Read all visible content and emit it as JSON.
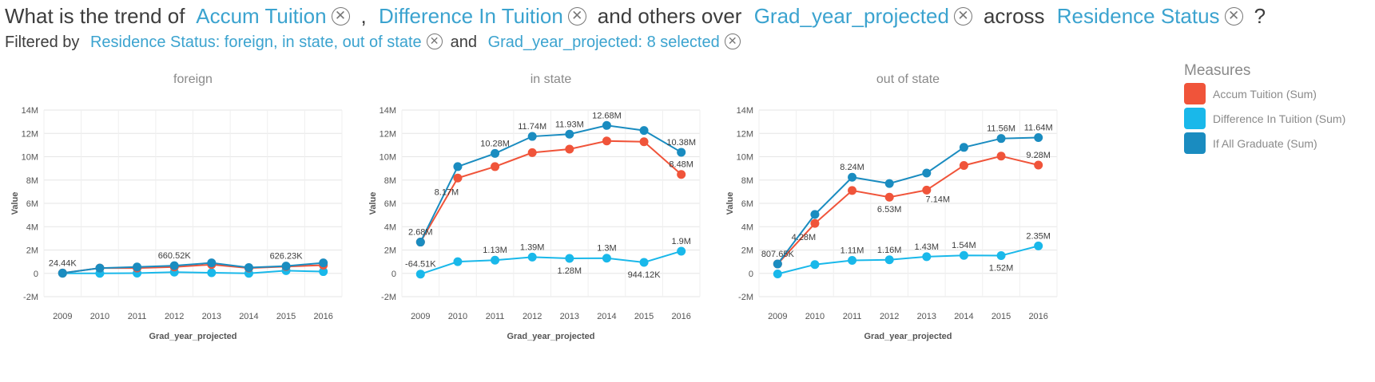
{
  "question": {
    "prefix": "What is the trend of",
    "measure1": "Accum Tuition",
    "comma": ",",
    "measure2": "Difference In Tuition",
    "mid": "and others over",
    "dimension": "Grad_year_projected",
    "across": "across",
    "split": "Residence Status",
    "suffix": "?"
  },
  "filters": {
    "prefix": "Filtered by",
    "filter1": "Residence Status: foreign, in state, out of state",
    "conj": "and",
    "filter2": "Grad_year_projected: 8 selected"
  },
  "legend": {
    "title": "Measures",
    "items": [
      {
        "label": "Accum Tuition (Sum)",
        "color": "#f0543a"
      },
      {
        "label": "Difference In Tuition (Sum)",
        "color": "#19b8ea"
      },
      {
        "label": "If All Graduate (Sum)",
        "color": "#1a8cc0"
      }
    ]
  },
  "icons": {
    "remove": "circle-x-icon"
  },
  "chart_data": [
    {
      "type": "line",
      "title": "foreign",
      "xlabel": "Grad_year_projected",
      "ylabel": "Value",
      "x": [
        "2009",
        "2010",
        "2011",
        "2012",
        "2013",
        "2014",
        "2015",
        "2016"
      ],
      "y_ticks": [
        "-2M",
        "0",
        "2M",
        "4M",
        "6M",
        "8M",
        "10M",
        "12M",
        "14M"
      ],
      "ylim": [
        -2000000,
        14000000
      ],
      "grid": true,
      "series": [
        {
          "name": "Accum Tuition (Sum)",
          "color": "#f0543a",
          "values": [
            24440,
            450000,
            450000,
            550000,
            750000,
            450000,
            580000,
            700000
          ]
        },
        {
          "name": "Difference In Tuition (Sum)",
          "color": "#19b8ea",
          "values": [
            0,
            0,
            20000,
            100000,
            50000,
            0,
            230000,
            150000
          ]
        },
        {
          "name": "If All Graduate (Sum)",
          "color": "#1a8cc0",
          "values": [
            24440,
            450000,
            550000,
            660520,
            900000,
            500000,
            626230,
            900000
          ]
        }
      ],
      "labels": [
        {
          "series": 2,
          "index": 0,
          "text": "24.44K",
          "pos": "above"
        },
        {
          "series": 2,
          "index": 3,
          "text": "660.52K",
          "pos": "above"
        },
        {
          "series": 2,
          "index": 6,
          "text": "626.23K",
          "pos": "above"
        }
      ]
    },
    {
      "type": "line",
      "title": "in state",
      "xlabel": "Grad_year_projected",
      "ylabel": "Value",
      "x": [
        "2009",
        "2010",
        "2011",
        "2012",
        "2013",
        "2014",
        "2015",
        "2016"
      ],
      "y_ticks": [
        "-2M",
        "0",
        "2M",
        "4M",
        "6M",
        "8M",
        "10M",
        "12M",
        "14M"
      ],
      "ylim": [
        -2000000,
        14000000
      ],
      "grid": true,
      "series": [
        {
          "name": "Accum Tuition (Sum)",
          "color": "#f0543a",
          "values": [
            2680000,
            8170000,
            9150000,
            10350000,
            10650000,
            11350000,
            11280000,
            8480000
          ]
        },
        {
          "name": "Difference In Tuition (Sum)",
          "color": "#19b8ea",
          "values": [
            -64510,
            1000000,
            1130000,
            1390000,
            1280000,
            1300000,
            944120,
            1900000
          ]
        },
        {
          "name": "If All Graduate (Sum)",
          "color": "#1a8cc0",
          "values": [
            2680000,
            9150000,
            10280000,
            11740000,
            11930000,
            12680000,
            12250000,
            10380000
          ]
        }
      ],
      "labels": [
        {
          "series": 2,
          "index": 0,
          "text": "2.68M",
          "pos": "above"
        },
        {
          "series": 0,
          "index": 1,
          "text": "8.17M",
          "pos": "belowleft"
        },
        {
          "series": 2,
          "index": 2,
          "text": "10.28M",
          "pos": "above"
        },
        {
          "series": 2,
          "index": 3,
          "text": "11.74M",
          "pos": "above"
        },
        {
          "series": 2,
          "index": 4,
          "text": "11.93M",
          "pos": "above"
        },
        {
          "series": 2,
          "index": 5,
          "text": "12.68M",
          "pos": "above"
        },
        {
          "series": 2,
          "index": 7,
          "text": "10.38M",
          "pos": "above"
        },
        {
          "series": 0,
          "index": 7,
          "text": "8.48M",
          "pos": "above"
        },
        {
          "series": 1,
          "index": 0,
          "text": "-64.51K",
          "pos": "above"
        },
        {
          "series": 1,
          "index": 2,
          "text": "1.13M",
          "pos": "above"
        },
        {
          "series": 1,
          "index": 3,
          "text": "1.39M",
          "pos": "above"
        },
        {
          "series": 1,
          "index": 4,
          "text": "1.28M",
          "pos": "below"
        },
        {
          "series": 1,
          "index": 5,
          "text": "1.3M",
          "pos": "above"
        },
        {
          "series": 1,
          "index": 6,
          "text": "944.12K",
          "pos": "below"
        },
        {
          "series": 1,
          "index": 7,
          "text": "1.9M",
          "pos": "above"
        }
      ]
    },
    {
      "type": "line",
      "title": "out of state",
      "xlabel": "Grad_year_projected",
      "ylabel": "Value",
      "x": [
        "2009",
        "2010",
        "2011",
        "2012",
        "2013",
        "2014",
        "2015",
        "2016"
      ],
      "y_ticks": [
        "-2M",
        "0",
        "2M",
        "4M",
        "6M",
        "8M",
        "10M",
        "12M",
        "14M"
      ],
      "ylim": [
        -2000000,
        14000000
      ],
      "grid": true,
      "series": [
        {
          "name": "Accum Tuition (Sum)",
          "color": "#f0543a",
          "values": [
            807650,
            4280000,
            7100000,
            6530000,
            7140000,
            9250000,
            10050000,
            9280000
          ]
        },
        {
          "name": "Difference In Tuition (Sum)",
          "color": "#19b8ea",
          "values": [
            -50000,
            750000,
            1110000,
            1160000,
            1430000,
            1540000,
            1520000,
            2350000
          ]
        },
        {
          "name": "If All Graduate (Sum)",
          "color": "#1a8cc0",
          "values": [
            807650,
            5050000,
            8240000,
            7700000,
            8600000,
            10800000,
            11560000,
            11640000
          ]
        }
      ],
      "labels": [
        {
          "series": 2,
          "index": 0,
          "text": "807.65K",
          "pos": "above"
        },
        {
          "series": 0,
          "index": 1,
          "text": "4.28M",
          "pos": "belowleft"
        },
        {
          "series": 2,
          "index": 2,
          "text": "8.24M",
          "pos": "above"
        },
        {
          "series": 0,
          "index": 3,
          "text": "6.53M",
          "pos": "below"
        },
        {
          "series": 0,
          "index": 4,
          "text": "7.14M",
          "pos": "belowright"
        },
        {
          "series": 2,
          "index": 6,
          "text": "11.56M",
          "pos": "above"
        },
        {
          "series": 2,
          "index": 7,
          "text": "11.64M",
          "pos": "above"
        },
        {
          "series": 0,
          "index": 7,
          "text": "9.28M",
          "pos": "above"
        },
        {
          "series": 1,
          "index": 2,
          "text": "1.11M",
          "pos": "above"
        },
        {
          "series": 1,
          "index": 3,
          "text": "1.16M",
          "pos": "above"
        },
        {
          "series": 1,
          "index": 4,
          "text": "1.43M",
          "pos": "above"
        },
        {
          "series": 1,
          "index": 5,
          "text": "1.54M",
          "pos": "above"
        },
        {
          "series": 1,
          "index": 6,
          "text": "1.52M",
          "pos": "below"
        },
        {
          "series": 1,
          "index": 7,
          "text": "2.35M",
          "pos": "above"
        }
      ]
    }
  ]
}
